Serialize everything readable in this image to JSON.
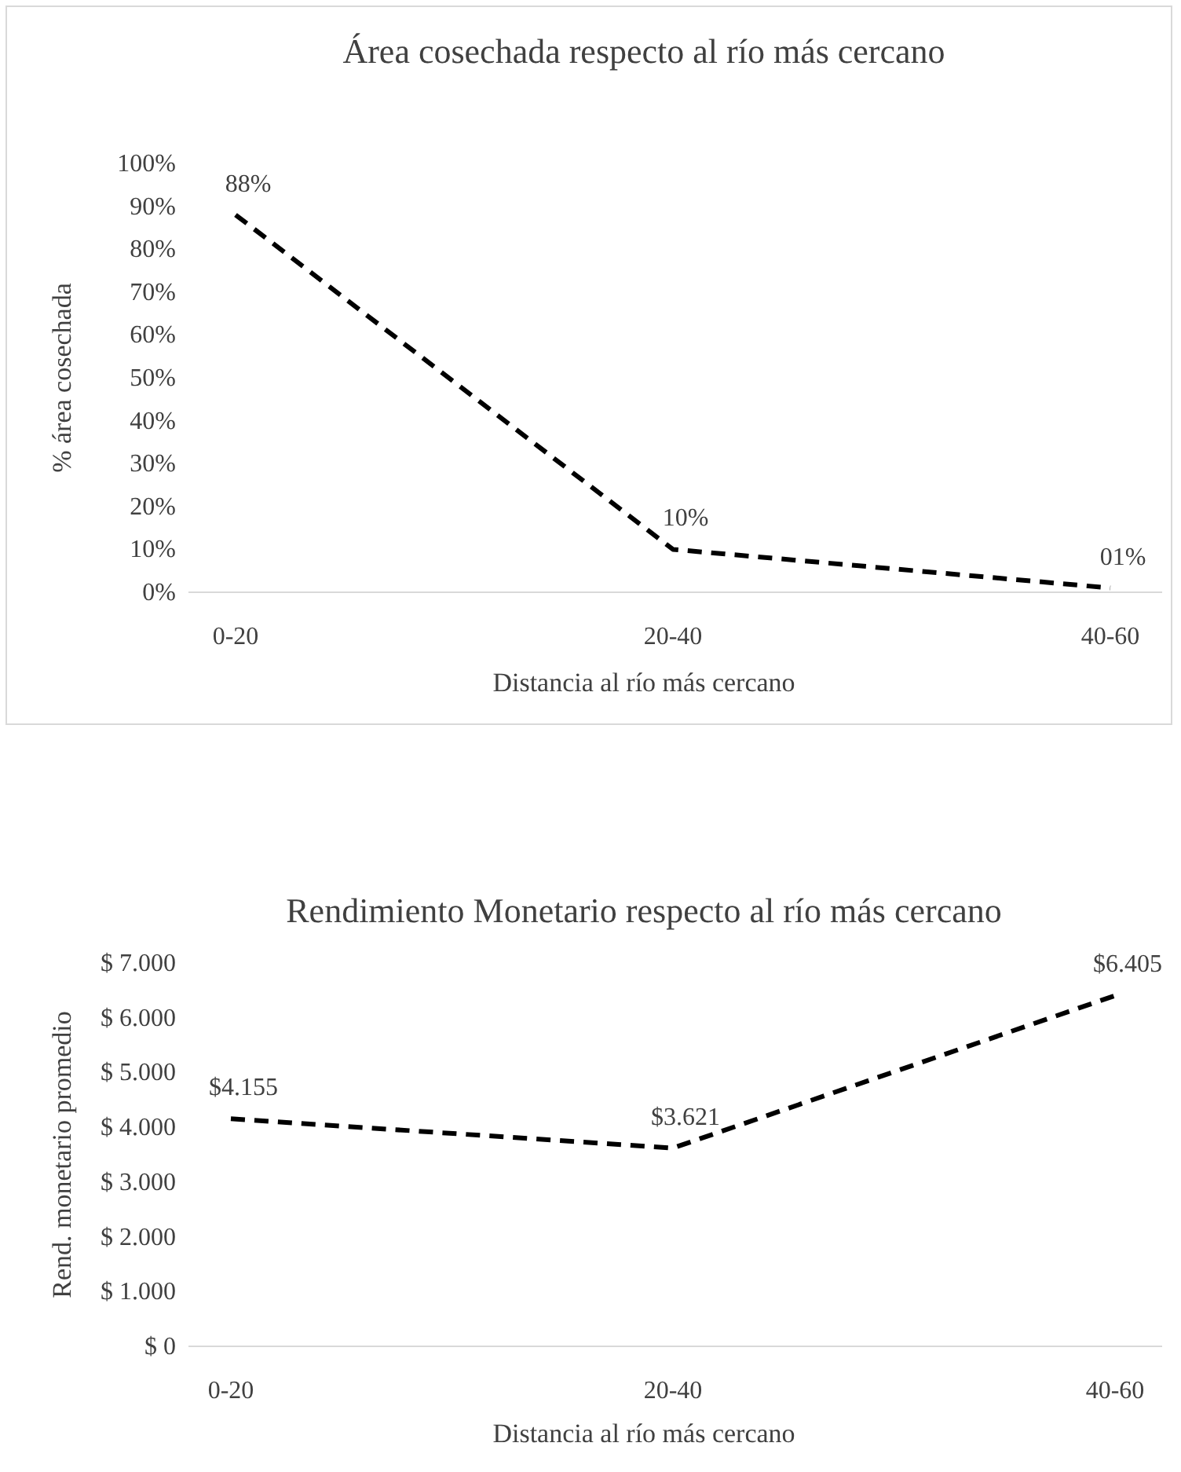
{
  "chart_data": [
    {
      "type": "line",
      "title": "Área cosechada respecto al río más cercano",
      "xlabel": "Distancia al río más cercano",
      "ylabel": "% área cosechada",
      "categories": [
        "0-20",
        "20-40",
        "40-60"
      ],
      "color": "#000000",
      "line_style": "dashed",
      "values": [
        88,
        10,
        1
      ],
      "value_labels": [
        "88%",
        "10%",
        "01%"
      ],
      "ylim": [
        0,
        100
      ],
      "yticks": [
        {
          "value": 0,
          "label": "0%"
        },
        {
          "value": 10,
          "label": "10%"
        },
        {
          "value": 20,
          "label": "20%"
        },
        {
          "value": 30,
          "label": "30%"
        },
        {
          "value": 40,
          "label": "40%"
        },
        {
          "value": 50,
          "label": "50%"
        },
        {
          "value": 60,
          "label": "60%"
        },
        {
          "value": 70,
          "label": "70%"
        },
        {
          "value": 80,
          "label": "80%"
        },
        {
          "value": 90,
          "label": "90%"
        },
        {
          "value": 100,
          "label": "100%"
        }
      ]
    },
    {
      "type": "line",
      "title": "Rendimiento Monetario respecto al río más cercano",
      "xlabel": "Distancia al río más cercano",
      "ylabel": "Rend. monetario promedio",
      "categories": [
        "0-20",
        "20-40",
        "40-60"
      ],
      "color": "#000000",
      "line_style": "dashed",
      "values": [
        4155,
        3621,
        6405
      ],
      "value_labels": [
        "$4.155",
        "$3.621",
        "$6.405"
      ],
      "ylim": [
        0,
        7000
      ],
      "yticks": [
        {
          "value": 0,
          "label": "$ 0"
        },
        {
          "value": 1000,
          "label": "$ 1.000"
        },
        {
          "value": 2000,
          "label": "$ 2.000"
        },
        {
          "value": 3000,
          "label": "$ 3.000"
        },
        {
          "value": 4000,
          "label": "$ 4.000"
        },
        {
          "value": 5000,
          "label": "$ 5.000"
        },
        {
          "value": 6000,
          "label": "$ 6.000"
        },
        {
          "value": 7000,
          "label": "$ 7.000"
        }
      ]
    }
  ]
}
